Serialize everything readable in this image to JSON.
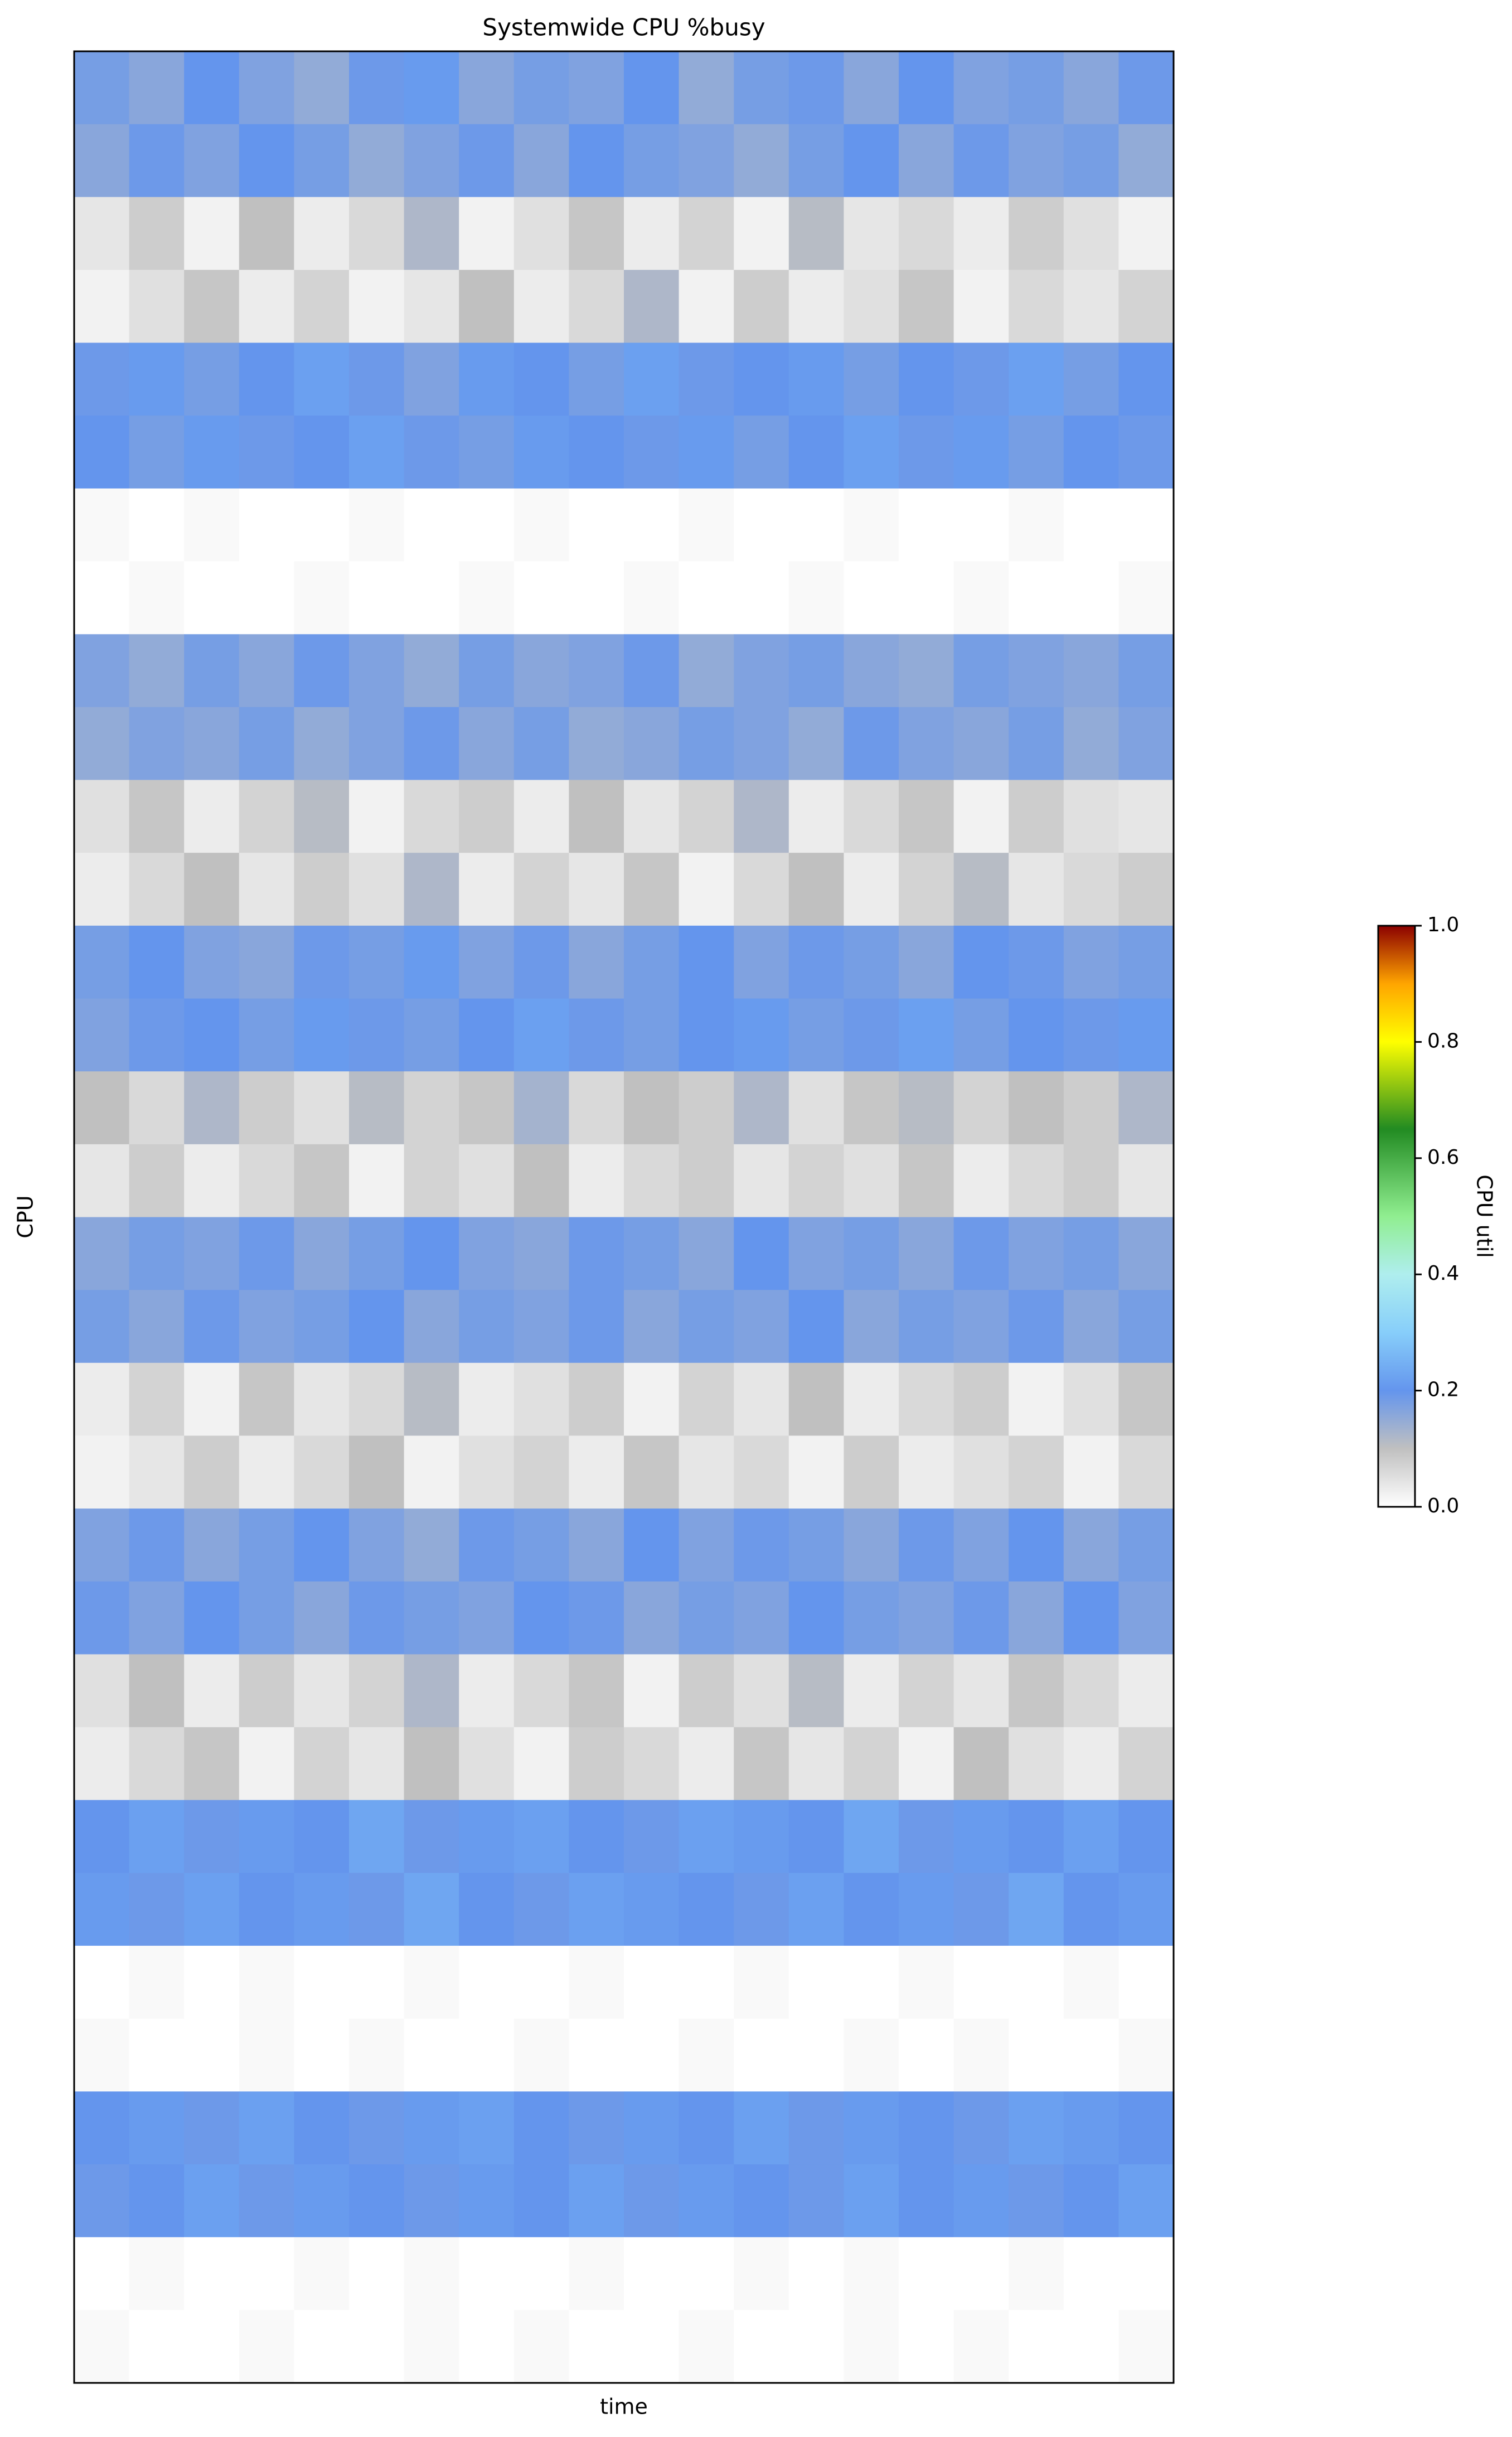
{
  "chart_data": {
    "type": "heatmap",
    "title": "Systemwide CPU %busy",
    "xlabel": "time",
    "ylabel": "CPU",
    "colorbar_label": "CPU util",
    "clim": [
      0,
      1
    ],
    "colorbar_ticks": [
      {
        "value": 0,
        "label": "0.0"
      },
      0.2,
      0.4,
      0.6,
      0.8,
      {
        "value": 1,
        "label": "1.0"
      }
    ],
    "colormap": [
      {
        "at": 0,
        "color": "#ffffff"
      },
      {
        "at": 0.1,
        "color": "#c0c0c0"
      },
      {
        "at": 0.2,
        "color": "#6495ed"
      },
      {
        "at": 0.3,
        "color": "#87cefa"
      },
      {
        "at": 0.4,
        "color": "#afeeee"
      },
      {
        "at": 0.5,
        "color": "#90ee90"
      },
      {
        "at": 0.65,
        "color": "#228b22"
      },
      {
        "at": 0.8,
        "color": "#ffff00"
      },
      {
        "at": 0.9,
        "color": "#ffa500"
      },
      {
        "at": 1,
        "color": "#8b0000"
      }
    ],
    "z": [
      [
        0.18,
        0.16,
        0.2,
        0.17,
        0.15,
        0.19,
        0.21,
        0.16,
        0.18,
        0.17,
        0.2,
        0.15,
        0.18,
        0.19,
        0.16,
        0.2,
        0.17,
        0.18,
        0.16,
        0.19
      ],
      [
        0.16,
        0.19,
        0.17,
        0.2,
        0.18,
        0.15,
        0.17,
        0.19,
        0.16,
        0.2,
        0.18,
        0.17,
        0.15,
        0.18,
        0.2,
        0.16,
        0.19,
        0.17,
        0.18,
        0.15
      ],
      [
        0.04,
        0.08,
        0.02,
        0.1,
        0.03,
        0.06,
        0.12,
        0.02,
        0.05,
        0.09,
        0.03,
        0.07,
        0.02,
        0.11,
        0.04,
        0.06,
        0.03,
        0.08,
        0.05,
        0.02
      ],
      [
        0.02,
        0.05,
        0.09,
        0.03,
        0.07,
        0.02,
        0.04,
        0.1,
        0.03,
        0.06,
        0.12,
        0.02,
        0.08,
        0.03,
        0.05,
        0.09,
        0.02,
        0.06,
        0.04,
        0.07
      ],
      [
        0.19,
        0.21,
        0.18,
        0.2,
        0.22,
        0.19,
        0.17,
        0.21,
        0.2,
        0.18,
        0.22,
        0.19,
        0.2,
        0.21,
        0.18,
        0.2,
        0.19,
        0.22,
        0.18,
        0.2
      ],
      [
        0.2,
        0.18,
        0.21,
        0.19,
        0.2,
        0.22,
        0.19,
        0.18,
        0.21,
        0.2,
        0.19,
        0.21,
        0.18,
        0.2,
        0.22,
        0.19,
        0.21,
        0.18,
        0.2,
        0.19
      ],
      [
        0.01,
        0,
        0.01,
        0,
        0,
        0.01,
        0,
        0,
        0.01,
        0,
        0,
        0.01,
        0,
        0,
        0.01,
        0,
        0,
        0.01,
        0,
        0
      ],
      [
        0,
        0.01,
        0,
        0,
        0.01,
        0,
        0,
        0.01,
        0,
        0,
        0.01,
        0,
        0,
        0.01,
        0,
        0,
        0.01,
        0,
        0,
        0.01
      ],
      [
        0.17,
        0.15,
        0.18,
        0.16,
        0.19,
        0.17,
        0.15,
        0.18,
        0.16,
        0.17,
        0.19,
        0.15,
        0.17,
        0.18,
        0.16,
        0.15,
        0.18,
        0.17,
        0.16,
        0.18
      ],
      [
        0.15,
        0.17,
        0.16,
        0.18,
        0.15,
        0.17,
        0.19,
        0.16,
        0.18,
        0.15,
        0.16,
        0.18,
        0.17,
        0.15,
        0.19,
        0.17,
        0.16,
        0.18,
        0.15,
        0.17
      ],
      [
        0.05,
        0.09,
        0.03,
        0.07,
        0.11,
        0.02,
        0.06,
        0.08,
        0.03,
        0.1,
        0.04,
        0.07,
        0.12,
        0.03,
        0.06,
        0.09,
        0.02,
        0.08,
        0.05,
        0.04
      ],
      [
        0.03,
        0.06,
        0.1,
        0.04,
        0.08,
        0.05,
        0.12,
        0.03,
        0.07,
        0.04,
        0.09,
        0.02,
        0.06,
        0.1,
        0.03,
        0.07,
        0.11,
        0.04,
        0.06,
        0.08
      ],
      [
        0.18,
        0.2,
        0.17,
        0.16,
        0.19,
        0.18,
        0.21,
        0.17,
        0.19,
        0.16,
        0.18,
        0.2,
        0.17,
        0.19,
        0.18,
        0.16,
        0.2,
        0.19,
        0.17,
        0.18
      ],
      [
        0.17,
        0.19,
        0.2,
        0.18,
        0.21,
        0.19,
        0.18,
        0.2,
        0.22,
        0.19,
        0.18,
        0.2,
        0.21,
        0.18,
        0.19,
        0.22,
        0.18,
        0.2,
        0.19,
        0.21
      ],
      [
        0.1,
        0.06,
        0.12,
        0.08,
        0.05,
        0.11,
        0.07,
        0.09,
        0.13,
        0.06,
        0.1,
        0.08,
        0.12,
        0.05,
        0.09,
        0.11,
        0.07,
        0.1,
        0.08,
        0.12
      ],
      [
        0.04,
        0.08,
        0.03,
        0.06,
        0.09,
        0.02,
        0.07,
        0.05,
        0.1,
        0.03,
        0.06,
        0.08,
        0.04,
        0.07,
        0.05,
        0.09,
        0.03,
        0.06,
        0.08,
        0.04
      ],
      [
        0.16,
        0.18,
        0.17,
        0.19,
        0.16,
        0.18,
        0.2,
        0.17,
        0.16,
        0.19,
        0.18,
        0.16,
        0.2,
        0.17,
        0.18,
        0.16,
        0.19,
        0.17,
        0.18,
        0.16
      ],
      [
        0.18,
        0.16,
        0.19,
        0.17,
        0.18,
        0.2,
        0.16,
        0.18,
        0.17,
        0.19,
        0.16,
        0.18,
        0.17,
        0.2,
        0.16,
        0.18,
        0.17,
        0.19,
        0.16,
        0.18
      ],
      [
        0.03,
        0.07,
        0.02,
        0.09,
        0.04,
        0.06,
        0.11,
        0.03,
        0.05,
        0.08,
        0.02,
        0.07,
        0.04,
        0.1,
        0.03,
        0.06,
        0.08,
        0.02,
        0.05,
        0.09
      ],
      [
        0.02,
        0.04,
        0.08,
        0.03,
        0.06,
        0.1,
        0.02,
        0.05,
        0.07,
        0.03,
        0.09,
        0.04,
        0.06,
        0.02,
        0.08,
        0.03,
        0.05,
        0.07,
        0.02,
        0.06
      ],
      [
        0.17,
        0.19,
        0.16,
        0.18,
        0.2,
        0.17,
        0.15,
        0.19,
        0.18,
        0.16,
        0.2,
        0.17,
        0.19,
        0.18,
        0.16,
        0.19,
        0.17,
        0.2,
        0.16,
        0.18
      ],
      [
        0.19,
        0.17,
        0.2,
        0.18,
        0.16,
        0.19,
        0.18,
        0.17,
        0.2,
        0.19,
        0.16,
        0.18,
        0.17,
        0.2,
        0.18,
        0.17,
        0.19,
        0.16,
        0.2,
        0.17
      ],
      [
        0.05,
        0.1,
        0.03,
        0.08,
        0.04,
        0.07,
        0.12,
        0.03,
        0.06,
        0.09,
        0.02,
        0.08,
        0.05,
        0.11,
        0.03,
        0.07,
        0.04,
        0.09,
        0.06,
        0.03
      ],
      [
        0.03,
        0.06,
        0.09,
        0.02,
        0.07,
        0.04,
        0.1,
        0.05,
        0.02,
        0.08,
        0.06,
        0.03,
        0.09,
        0.04,
        0.07,
        0.02,
        0.1,
        0.05,
        0.03,
        0.07
      ],
      [
        0.2,
        0.22,
        0.19,
        0.21,
        0.2,
        0.23,
        0.19,
        0.21,
        0.22,
        0.2,
        0.19,
        0.22,
        0.21,
        0.2,
        0.23,
        0.19,
        0.21,
        0.2,
        0.22,
        0.2
      ],
      [
        0.21,
        0.19,
        0.22,
        0.2,
        0.21,
        0.19,
        0.23,
        0.2,
        0.19,
        0.22,
        0.21,
        0.2,
        0.19,
        0.22,
        0.2,
        0.21,
        0.19,
        0.23,
        0.2,
        0.21
      ],
      [
        0,
        0.01,
        0,
        0.01,
        0,
        0,
        0.01,
        0,
        0,
        0.01,
        0,
        0,
        0.01,
        0,
        0,
        0.01,
        0,
        0,
        0.01,
        0
      ],
      [
        0.01,
        0,
        0,
        0.01,
        0,
        0.01,
        0,
        0,
        0.01,
        0,
        0,
        0.01,
        0,
        0,
        0.01,
        0,
        0.01,
        0,
        0,
        0.01
      ],
      [
        0.2,
        0.21,
        0.19,
        0.22,
        0.2,
        0.19,
        0.21,
        0.22,
        0.2,
        0.19,
        0.21,
        0.2,
        0.22,
        0.19,
        0.21,
        0.2,
        0.19,
        0.22,
        0.21,
        0.2
      ],
      [
        0.19,
        0.2,
        0.22,
        0.19,
        0.21,
        0.2,
        0.19,
        0.21,
        0.2,
        0.22,
        0.19,
        0.21,
        0.2,
        0.19,
        0.22,
        0.2,
        0.21,
        0.19,
        0.2,
        0.22
      ],
      [
        0,
        0.01,
        0,
        0,
        0.01,
        0,
        0.01,
        0,
        0,
        0.01,
        0,
        0,
        0.01,
        0,
        0.01,
        0,
        0,
        0.01,
        0,
        0
      ],
      [
        0.01,
        0,
        0,
        0.01,
        0,
        0,
        0.01,
        0,
        0.01,
        0,
        0,
        0.01,
        0,
        0,
        0.01,
        0,
        0.01,
        0,
        0,
        0.01
      ]
    ]
  }
}
